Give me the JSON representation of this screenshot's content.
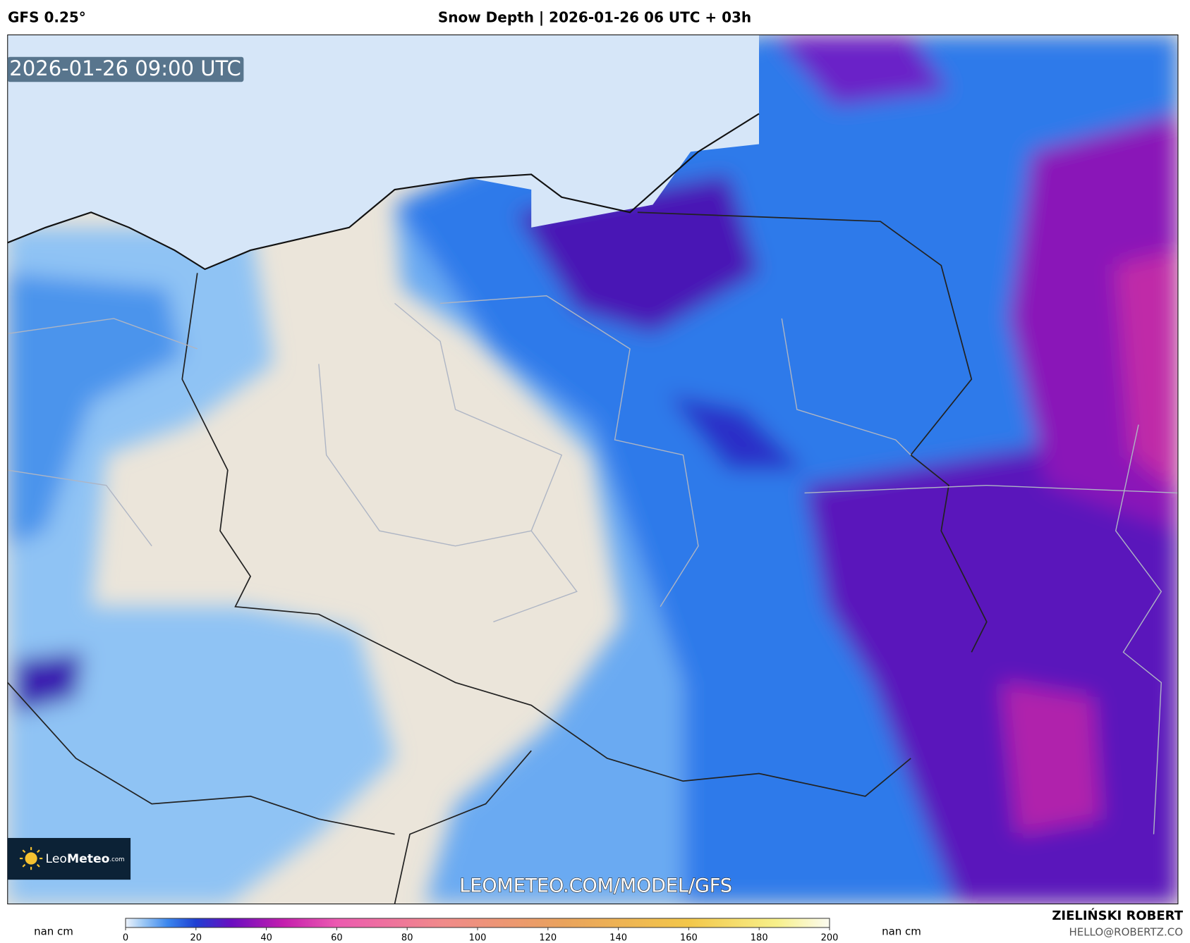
{
  "header": {
    "left": "GFS 0.25°",
    "title": "Snow Depth | 2026-01-26 06 UTC + 03h"
  },
  "map": {
    "timestamp": "2026-01-26 09:00 UTC",
    "watermark": "LEOMETEO.COM/MODEL/GFS",
    "logo": {
      "light": "Leo",
      "bold": "Meteo",
      "suffix": ".com"
    }
  },
  "colorbar": {
    "left_label": "nan cm",
    "right_label": "nan cm",
    "lim": [
      0,
      200
    ],
    "ticks": [
      0,
      20,
      40,
      60,
      80,
      100,
      120,
      140,
      160,
      180,
      200
    ],
    "stops": [
      {
        "value": 0,
        "color": "#eef3fb"
      },
      {
        "value": 5,
        "color": "#9cc8f5"
      },
      {
        "value": 12,
        "color": "#3a86ee"
      },
      {
        "value": 20,
        "color": "#1f3fd2"
      },
      {
        "value": 30,
        "color": "#6a0ec0"
      },
      {
        "value": 45,
        "color": "#c51eae"
      },
      {
        "value": 60,
        "color": "#ec5ab0"
      },
      {
        "value": 90,
        "color": "#f08a8a"
      },
      {
        "value": 125,
        "color": "#e9a35c"
      },
      {
        "value": 160,
        "color": "#f3c74a"
      },
      {
        "value": 185,
        "color": "#f7f08a"
      },
      {
        "value": 200,
        "color": "#fbfbf0"
      }
    ]
  },
  "footer": {
    "author": "ZIELIŃSKI ROBERT",
    "email": "HELLO@ROBERTZ.CO"
  }
}
